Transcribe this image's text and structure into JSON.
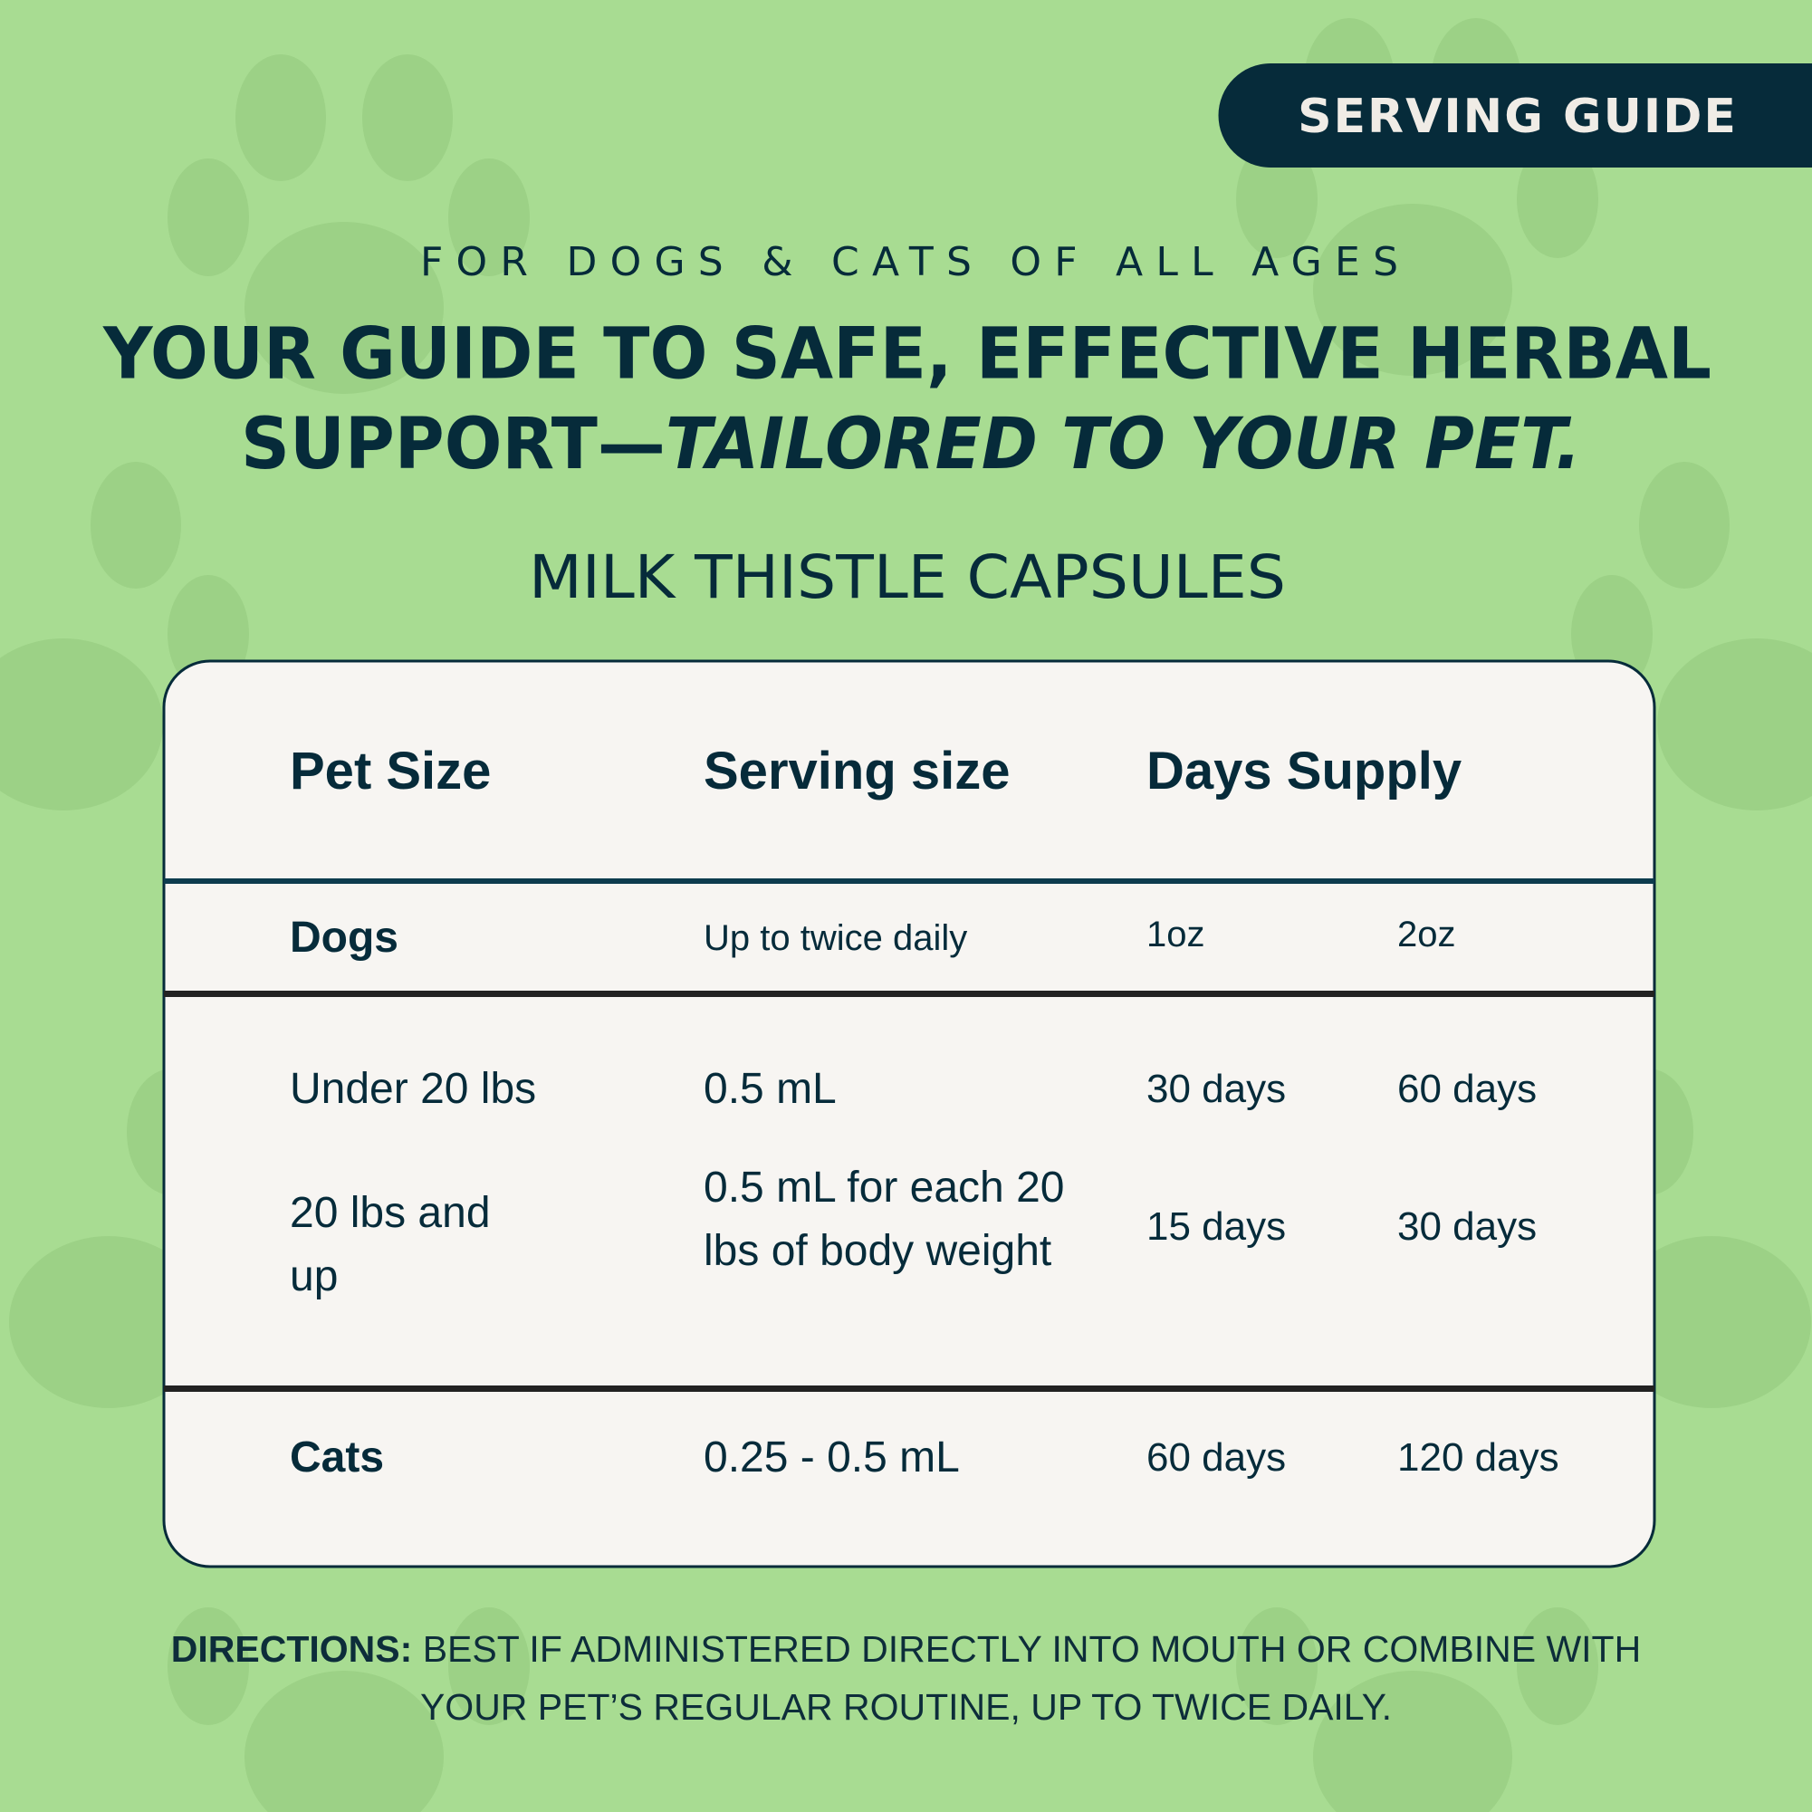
{
  "badge": "SERVING GUIDE",
  "eyebrow": "FOR DOGS & CATS OF ALL AGES",
  "headline": {
    "line1": "YOUR GUIDE TO SAFE, EFFECTIVE HERBAL",
    "line2": "SUPPORT—",
    "emphasis": "TAILORED TO YOUR PET."
  },
  "product": "MILK THISTLE CAPSULES",
  "table": {
    "header": [
      "Pet Size",
      "Serving size",
      "Days Supply"
    ],
    "rows": [
      [
        "Dogs",
        "Up to twice daily",
        "1oz",
        "2oz"
      ],
      [
        "Under 20 lbs",
        "0.5 mL",
        "30 days",
        "60 days"
      ],
      [
        "20 lbs and up",
        "0.5 mL for each 20 lbs of body weight",
        "15 days",
        "30 days"
      ],
      [
        "Cats",
        "0.25 - 0.5 mL",
        "60 days",
        "120 days"
      ]
    ]
  },
  "directions": {
    "label": "DIRECTIONS:",
    "lines": [
      "BEST IF ADMINISTERED DIRECTLY INTO MOUTH OR COMBINE WITH",
      "YOUR PET’S REGULAR ROUTINE, UP TO TWICE DAILY."
    ]
  }
}
